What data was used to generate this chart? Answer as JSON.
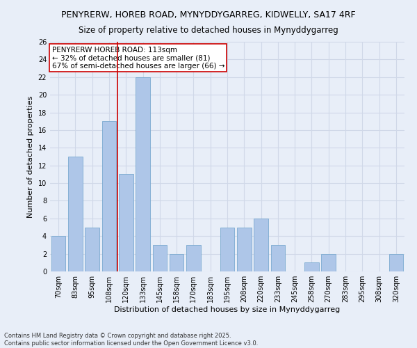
{
  "title1": "PENYRERW, HOREB ROAD, MYNYDDYGARREG, KIDWELLY, SA17 4RF",
  "title2": "Size of property relative to detached houses in Mynyddygarreg",
  "xlabel": "Distribution of detached houses by size in Mynyddygarreg",
  "ylabel": "Number of detached properties",
  "categories": [
    "70sqm",
    "83sqm",
    "95sqm",
    "108sqm",
    "120sqm",
    "133sqm",
    "145sqm",
    "158sqm",
    "170sqm",
    "183sqm",
    "195sqm",
    "208sqm",
    "220sqm",
    "233sqm",
    "245sqm",
    "258sqm",
    "270sqm",
    "283sqm",
    "295sqm",
    "308sqm",
    "320sqm"
  ],
  "values": [
    4,
    13,
    5,
    17,
    11,
    22,
    3,
    2,
    3,
    0,
    5,
    5,
    6,
    3,
    0,
    1,
    2,
    0,
    0,
    0,
    2
  ],
  "bar_color": "#aec6e8",
  "bar_edge_color": "#7aaad0",
  "grid_color": "#d0d8e8",
  "bg_color": "#e8eef8",
  "vline_x": 3.5,
  "vline_color": "#cc0000",
  "annotation_text": "PENYRERW HOREB ROAD: 113sqm\n← 32% of detached houses are smaller (81)\n67% of semi-detached houses are larger (66) →",
  "annotation_box_color": "#ffffff",
  "annotation_box_edge": "#cc0000",
  "ylim": [
    0,
    26
  ],
  "yticks": [
    0,
    2,
    4,
    6,
    8,
    10,
    12,
    14,
    16,
    18,
    20,
    22,
    24,
    26
  ],
  "footer": "Contains HM Land Registry data © Crown copyright and database right 2025.\nContains public sector information licensed under the Open Government Licence v3.0.",
  "title_fontsize": 9,
  "subtitle_fontsize": 8.5,
  "tick_fontsize": 7,
  "label_fontsize": 8,
  "annotation_fontsize": 7.5,
  "footer_fontsize": 6
}
